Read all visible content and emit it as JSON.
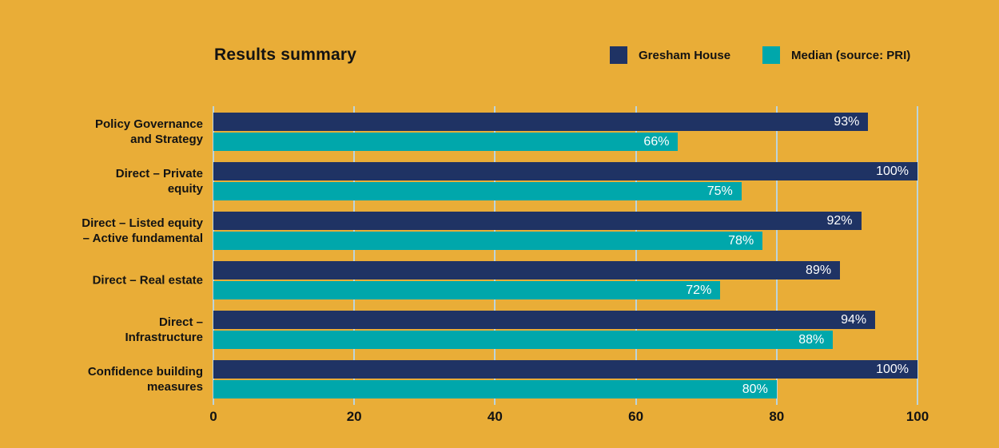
{
  "colors": {
    "background": "#E9AD37",
    "text": "#131313",
    "bar_label": "#ffffff",
    "gridline": "#BCD4DB"
  },
  "legend": [
    {
      "label": "Gresham House",
      "color": "#1F3364"
    },
    {
      "label": "Median (source: PRI)",
      "color": "#00A7AB"
    }
  ],
  "chart_data": {
    "type": "bar",
    "orientation": "horizontal",
    "title": "Results summary",
    "categories": [
      "Policy Governance\nand Strategy",
      "Direct – Private\nequity",
      "Direct – Listed equity\n– Active fundamental",
      "Direct – Real estate",
      "Direct –\nInfrastructure",
      "Confidence building\nmeasures"
    ],
    "series": [
      {
        "name": "Gresham House",
        "color": "#1F3364",
        "values": [
          93,
          100,
          92,
          89,
          94,
          100
        ]
      },
      {
        "name": "Median (source: PRI)",
        "color": "#00A7AB",
        "values": [
          66,
          75,
          78,
          72,
          88,
          80
        ]
      }
    ],
    "value_suffix": "%",
    "xlabel": "",
    "ylabel": "",
    "xlim": [
      0,
      100
    ],
    "x_ticks": [
      0,
      20,
      40,
      60,
      80,
      100
    ],
    "grid": true,
    "legend_position": "top-right"
  }
}
